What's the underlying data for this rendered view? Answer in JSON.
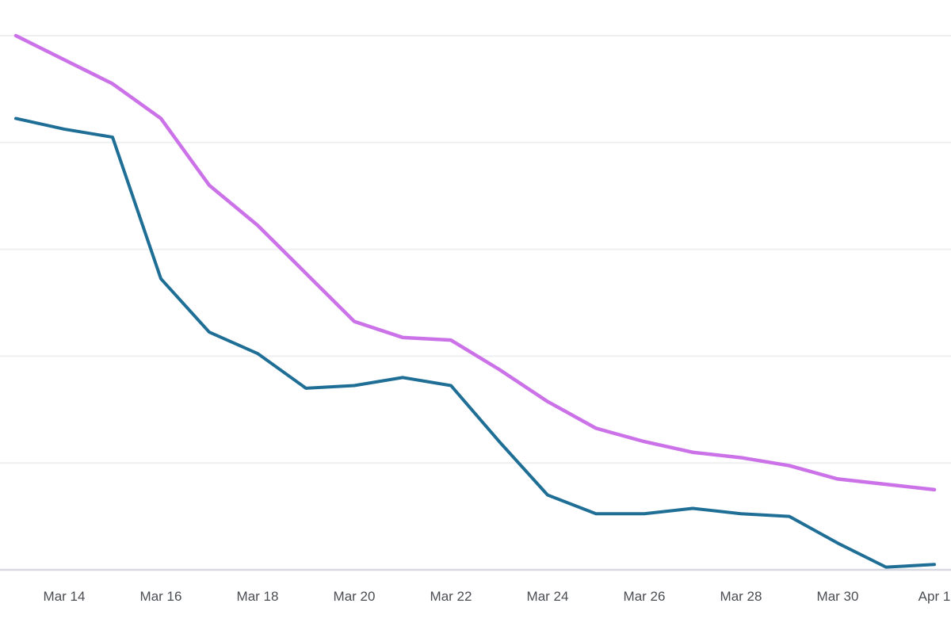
{
  "chart_data": {
    "type": "line",
    "title": "",
    "xlabel": "",
    "ylabel": "",
    "x": [
      "Mar 13",
      "Mar 14",
      "Mar 15",
      "Mar 16",
      "Mar 17",
      "Mar 18",
      "Mar 19",
      "Mar 20",
      "Mar 21",
      "Mar 22",
      "Mar 23",
      "Mar 24",
      "Mar 25",
      "Mar 26",
      "Mar 27",
      "Mar 28",
      "Mar 29",
      "Mar 30",
      "Mar 31",
      "Apr 1"
    ],
    "x_tick_labels": [
      "Mar 14",
      "Mar 16",
      "Mar 18",
      "Mar 20",
      "Mar 22",
      "Mar 24",
      "Mar 26",
      "Mar 28",
      "Mar 30",
      "Apr 1"
    ],
    "series": [
      {
        "name": "magenta-line",
        "color": "#cc72e8",
        "stroke_width": 4.5,
        "values": [
          100,
          95.5,
          91,
          84.5,
          72,
          64.5,
          55.5,
          46.5,
          43.5,
          43,
          37.5,
          31.5,
          26.5,
          24,
          22,
          21,
          19.5,
          17,
          16,
          15
        ]
      },
      {
        "name": "blue-line",
        "color": "#1e6e96",
        "stroke_width": 4,
        "values": [
          84.5,
          82.5,
          81,
          54.5,
          44.5,
          40.5,
          34,
          34.5,
          36,
          34.5,
          24,
          14,
          10.5,
          10.5,
          11.5,
          10.5,
          10,
          5,
          0.5,
          1
        ]
      }
    ],
    "ylim": [
      0,
      100
    ],
    "y_gridline_values": [
      0,
      20,
      40,
      60,
      80,
      100
    ],
    "y_axis_labels_visible": false,
    "grid": "horizontal",
    "legend_position": "none",
    "y_scale_note": "No y-axis tick labels are rendered in the image; series values are estimated on a normalized 0-100 scale where the bottom axis line = 0 and the top gridline = 100 (one gridline every 20 units)."
  },
  "colors": {
    "background": "#ffffff",
    "gridline": "#efeff1",
    "axis_line": "#d8d8e2",
    "tick_label": "#4a4d52"
  }
}
